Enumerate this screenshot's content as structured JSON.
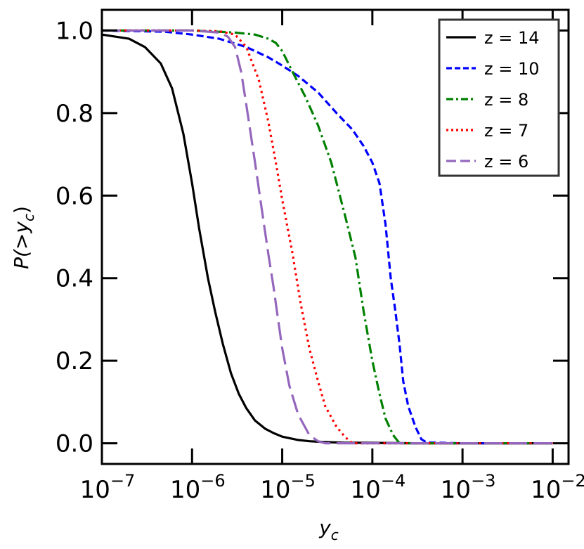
{
  "chart_data": {
    "type": "line",
    "xlabel": "y",
    "xlabel_sub": "c",
    "ylabel_prefix": "P(>",
    "ylabel_var": "y",
    "ylabel_sub": "c",
    "ylabel_suffix": ")",
    "xscale": "log",
    "xlim": [
      1e-07,
      0.015
    ],
    "ylim": [
      -0.05,
      1.05
    ],
    "x_ticks": [
      {
        "value": 1e-07,
        "base": "10",
        "exp": "−7"
      },
      {
        "value": 1e-06,
        "base": "10",
        "exp": "−6"
      },
      {
        "value": 1e-05,
        "base": "10",
        "exp": "−5"
      },
      {
        "value": 0.0001,
        "base": "10",
        "exp": "−4"
      },
      {
        "value": 0.001,
        "base": "10",
        "exp": "−3"
      },
      {
        "value": 0.01,
        "base": "10",
        "exp": "−2"
      }
    ],
    "y_ticks": [
      {
        "value": 0.0,
        "label": "0.0"
      },
      {
        "value": 0.2,
        "label": "0.2"
      },
      {
        "value": 0.4,
        "label": "0.4"
      },
      {
        "value": 0.6,
        "label": "0.6"
      },
      {
        "value": 0.8,
        "label": "0.8"
      },
      {
        "value": 1.0,
        "label": "1.0"
      }
    ],
    "grid": false,
    "legend_position": "top-right",
    "series": [
      {
        "name": "z = 14",
        "color": "#000000",
        "dash": "solid",
        "x": [
          1e-07,
          2e-07,
          3e-07,
          4.5e-07,
          6e-07,
          8e-07,
          1e-06,
          1.2e-06,
          1.5e-06,
          1.8e-06,
          2.2e-06,
          2.7e-06,
          3.3e-06,
          4e-06,
          5e-06,
          6.5e-06,
          8e-06,
          1e-05,
          1.5e-05,
          2e-05,
          3e-05,
          5e-05,
          0.0001,
          0.0003,
          0.001,
          0.01
        ],
        "y": [
          0.99,
          0.98,
          0.96,
          0.92,
          0.86,
          0.75,
          0.63,
          0.52,
          0.4,
          0.32,
          0.24,
          0.17,
          0.12,
          0.085,
          0.055,
          0.035,
          0.025,
          0.016,
          0.008,
          0.005,
          0.003,
          0.0015,
          0.001,
          0.0,
          0.0,
          0.0
        ]
      },
      {
        "name": "z = 10",
        "color": "#0000ff",
        "dash": "dashed",
        "x": [
          1e-07,
          5e-07,
          1e-06,
          2e-06,
          4e-06,
          7e-06,
          1e-05,
          1.5e-05,
          2.5e-05,
          4e-05,
          6e-05,
          8e-05,
          0.0001,
          0.00012,
          0.00014,
          0.00016,
          0.00018,
          0.0002,
          0.00022,
          0.00025,
          0.0003,
          0.00035,
          0.0004,
          0.001,
          0.01
        ],
        "y": [
          1.0,
          0.997,
          0.99,
          0.98,
          0.96,
          0.935,
          0.915,
          0.89,
          0.85,
          0.8,
          0.76,
          0.72,
          0.68,
          0.63,
          0.53,
          0.4,
          0.32,
          0.24,
          0.15,
          0.09,
          0.04,
          0.01,
          0.002,
          0.0,
          0.0
        ]
      },
      {
        "name": "z = 8",
        "color": "#008000",
        "dash": "dashdot",
        "x": [
          1e-07,
          1e-06,
          3e-06,
          5e-06,
          7e-06,
          8.5e-06,
          1e-05,
          1.3e-05,
          1.8e-05,
          2.5e-05,
          3.5e-05,
          5e-05,
          6.5e-05,
          8e-05,
          0.0001,
          0.00012,
          0.00014,
          0.00017,
          0.0002,
          0.001,
          0.01
        ],
        "y": [
          1.0,
          1.0,
          0.995,
          0.99,
          0.98,
          0.97,
          0.95,
          0.9,
          0.84,
          0.77,
          0.68,
          0.55,
          0.45,
          0.32,
          0.2,
          0.12,
          0.06,
          0.02,
          0.0,
          0.0,
          0.0
        ]
      },
      {
        "name": "z = 7",
        "color": "#ff0000",
        "dash": "dotted",
        "x": [
          1e-07,
          1e-06,
          2e-06,
          3e-06,
          4e-06,
          5.5e-06,
          7e-06,
          8.5e-06,
          1e-05,
          1.3e-05,
          1.6e-05,
          2e-05,
          2.5e-05,
          3e-05,
          4e-05,
          5e-05,
          6e-05,
          0.0001,
          0.001,
          0.01
        ],
        "y": [
          1.0,
          1.0,
          0.998,
          0.99,
          0.96,
          0.88,
          0.78,
          0.68,
          0.59,
          0.46,
          0.34,
          0.23,
          0.15,
          0.09,
          0.04,
          0.015,
          0.0,
          0.0,
          0.0,
          0.0
        ]
      },
      {
        "name": "z = 6",
        "color": "#9467bd",
        "dash": "longdash",
        "x": [
          1e-07,
          1e-06,
          2e-06,
          2.5e-06,
          3e-06,
          3.5e-06,
          4e-06,
          5e-06,
          6e-06,
          7e-06,
          8e-06,
          9e-06,
          1e-05,
          1.2e-05,
          1.5e-05,
          2e-05,
          2.5e-05,
          3e-05,
          0.0001,
          0.001,
          0.01
        ],
        "y": [
          1.0,
          1.0,
          0.995,
          0.985,
          0.96,
          0.9,
          0.82,
          0.68,
          0.56,
          0.46,
          0.38,
          0.3,
          0.23,
          0.14,
          0.07,
          0.02,
          0.005,
          0.0,
          0.0,
          0.0,
          0.0
        ]
      }
    ]
  }
}
